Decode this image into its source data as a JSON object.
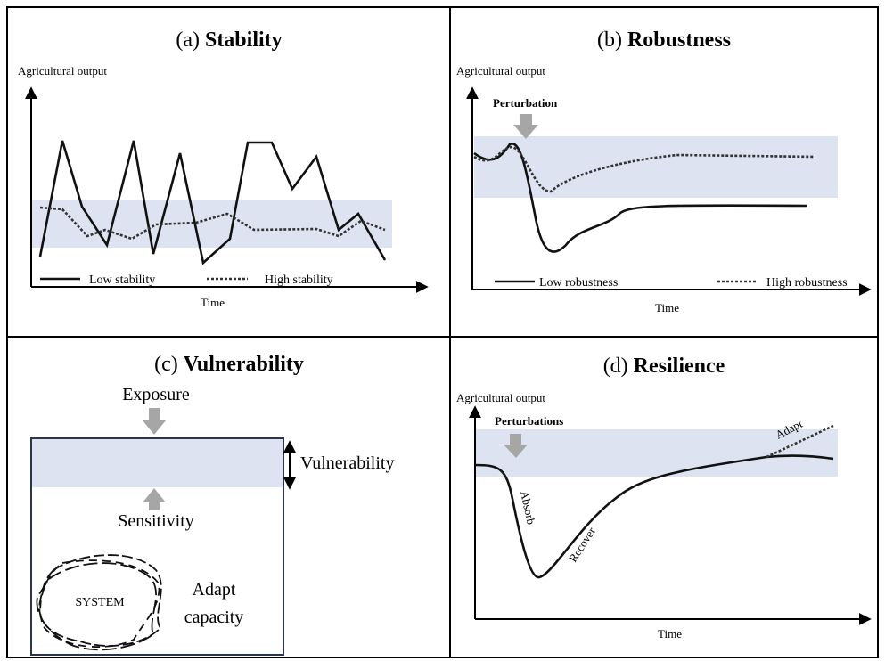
{
  "panels": [
    {
      "label": "(a)",
      "name": "Stability",
      "y_axis": "Agricultural output",
      "x_axis": "Time",
      "legend": [
        "Low stability",
        "High stability"
      ]
    },
    {
      "label": "(b)",
      "name": "Robustness",
      "y_axis": "Agricultural output",
      "x_axis": "Time",
      "event": "Perturbation",
      "legend": [
        "Low robustness",
        "High robustness"
      ]
    },
    {
      "label": "(c)",
      "name": "Vulnerability",
      "exposure": "Exposure",
      "vulnerability": "Vulnerability",
      "sensitivity": "Sensitivity",
      "system": "SYSTEM",
      "adapt_capacity": [
        "Adapt",
        "capacity"
      ]
    },
    {
      "label": "(d)",
      "name": "Resilience",
      "y_axis": "Agricultural output",
      "x_axis": "Time",
      "event": "Perturbations",
      "phases": [
        "Absorb",
        "Recover",
        "Adapt"
      ]
    }
  ]
}
